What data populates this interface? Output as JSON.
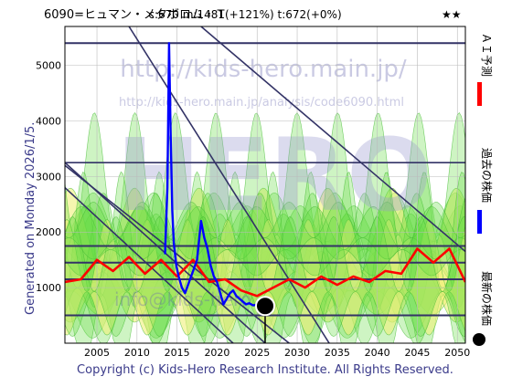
{
  "header": {
    "title": "6090=ヒュマン・メタボロム・Ｔ",
    "stats": "c:670  m:1481(+121%)  t:672(+0%)",
    "stars": "★★"
  },
  "generated_label": "Generated on Monday 2026/1/5.",
  "watermark": {
    "url": "http://kids-hero.main.jp/",
    "code_url": "http://kids-hero.main.jp/analysis/code6090.html",
    "email": "info@kids-hero"
  },
  "legend": {
    "ai": "ＡＩ予測",
    "past": "過去の株価",
    "latest": "最新の株価"
  },
  "footer": "Copyright (c) Kids-Hero Research Institute. All Rights Reserved.",
  "colors": {
    "prediction": "#ff0000",
    "past": "#0000ff",
    "trend_lines": "#333366",
    "band_green": "#66dd44",
    "band_yellow": "#f0f07a",
    "grid": "#bbbbbb"
  },
  "chart_data": {
    "type": "line",
    "x_ticks": [
      2005,
      2010,
      2015,
      2020,
      2025,
      2030,
      2035,
      2040,
      2045,
      2050
    ],
    "y_ticks": [
      1000,
      2000,
      3000,
      4000,
      5000
    ],
    "xlim": [
      2001,
      2051
    ],
    "ylim": [
      0,
      5700
    ],
    "grid": true,
    "horizontal_levels": [
      5400,
      1750,
      1450,
      1150,
      500
    ],
    "trend_lines": [
      {
        "x": [
          2009,
          2034
        ],
        "y": [
          5700,
          0
        ]
      },
      {
        "x": [
          2001,
          2051
        ],
        "y": [
          3250,
          3250
        ]
      },
      {
        "x": [
          2001,
          2026
        ],
        "y": [
          3250,
          0
        ]
      },
      {
        "x": [
          2001,
          2029
        ],
        "y": [
          3200,
          0
        ]
      },
      {
        "x": [
          2001,
          2022
        ],
        "y": [
          2800,
          0
        ]
      },
      {
        "x": [
          2018,
          2051
        ],
        "y": [
          5700,
          1650
        ]
      }
    ],
    "series": [
      {
        "name": "過去の株価",
        "x": [
          2013.5,
          2013.8,
          2014.0,
          2014.2,
          2014.4,
          2014.6,
          2014.9,
          2015.2,
          2015.6,
          2016.0,
          2016.5,
          2017.0,
          2017.5,
          2018.0,
          2018.4,
          2018.8,
          2019.2,
          2019.6,
          2020.0,
          2020.4,
          2020.8,
          2021.2,
          2021.6,
          2022.0,
          2022.4,
          2022.8,
          2023.2,
          2023.6,
          2024.0,
          2024.5,
          2025.0,
          2025.5,
          2026.0
        ],
        "values": [
          1600,
          2800,
          5400,
          3800,
          2400,
          1800,
          1400,
          1200,
          1000,
          900,
          1100,
          1300,
          1500,
          2200,
          1900,
          1700,
          1400,
          1200,
          1100,
          900,
          700,
          800,
          900,
          950,
          850,
          800,
          750,
          700,
          720,
          680,
          700,
          690,
          670
        ]
      },
      {
        "name": "ＡＩ予測",
        "x": [
          2001,
          2003,
          2005,
          2007,
          2009,
          2011,
          2013,
          2015,
          2017,
          2019,
          2021,
          2023,
          2025,
          2027,
          2029,
          2031,
          2033,
          2035,
          2037,
          2039,
          2041,
          2043,
          2045,
          2047,
          2049,
          2051
        ],
        "values": [
          1100,
          1150,
          1500,
          1300,
          1550,
          1250,
          1500,
          1200,
          1500,
          1100,
          1150,
          950,
          850,
          1000,
          1150,
          1000,
          1200,
          1050,
          1200,
          1100,
          1300,
          1250,
          1700,
          1450,
          1700,
          1100
        ]
      }
    ],
    "latest": {
      "x": 2026.0,
      "y": 670
    }
  }
}
